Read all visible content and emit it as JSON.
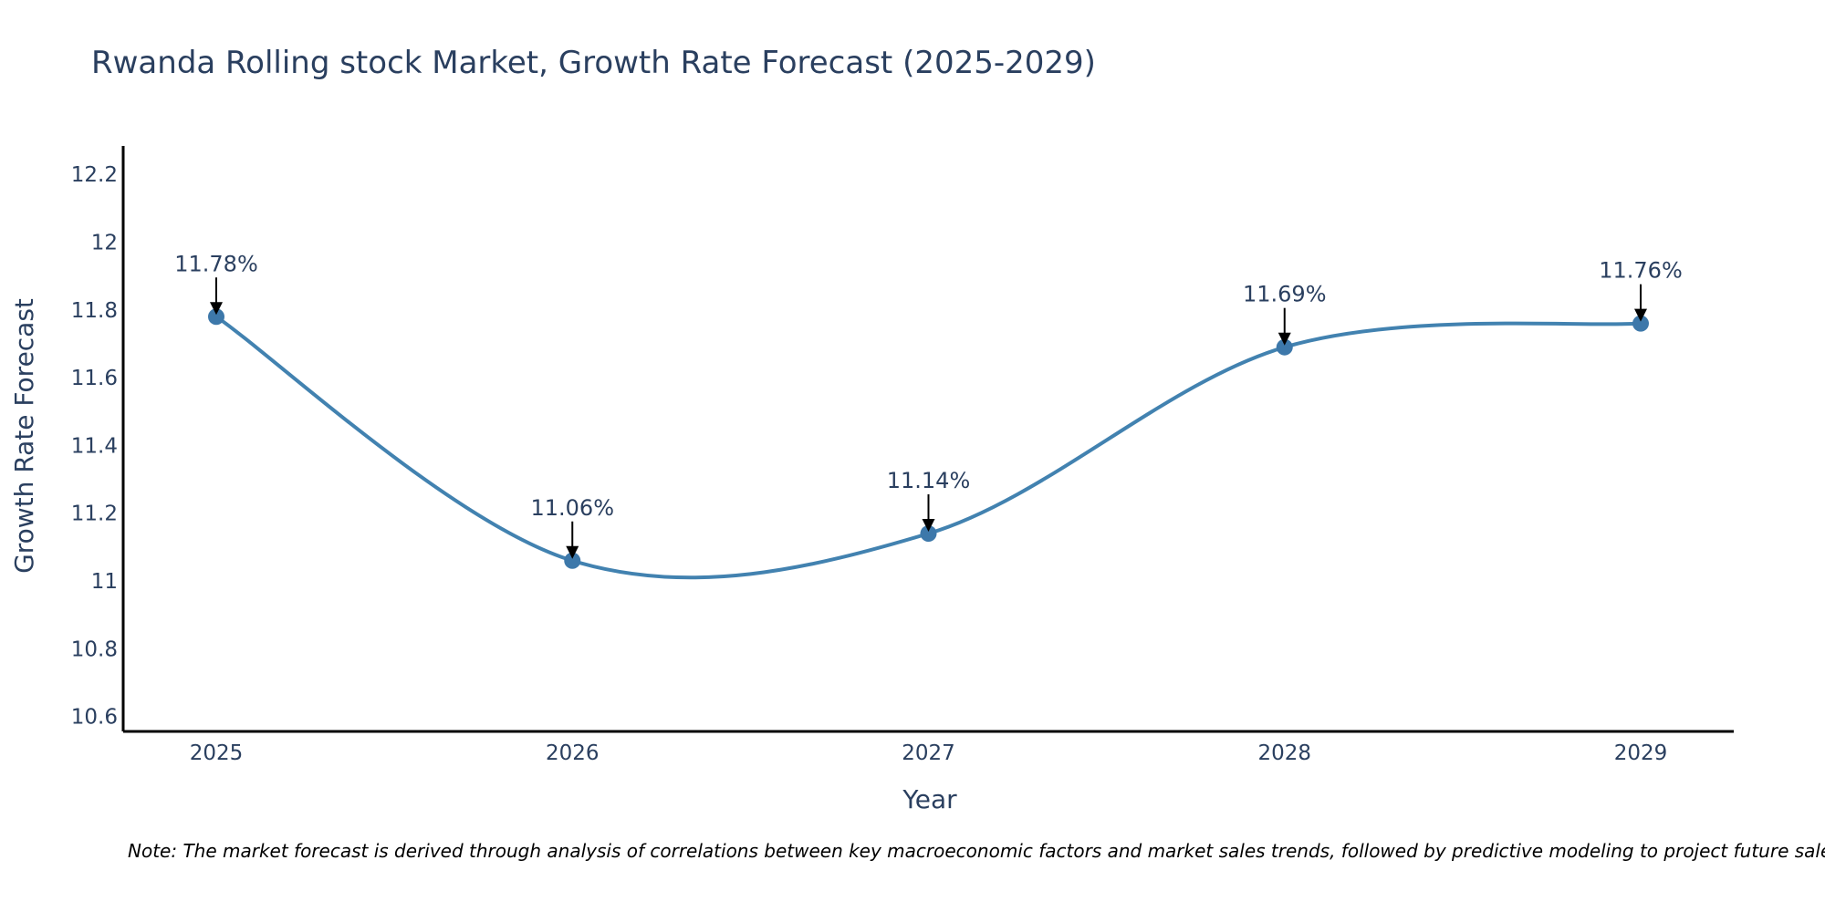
{
  "chart_data": {
    "type": "line",
    "title": "Rwanda Rolling stock Market, Growth Rate Forecast (2025-2029)",
    "xlabel": "Year",
    "ylabel": "Growth Rate Forecast",
    "categories": [
      "2025",
      "2026",
      "2027",
      "2028",
      "2029"
    ],
    "series": [
      {
        "name": "Growth Rate Forecast",
        "values": [
          11.78,
          11.06,
          11.14,
          11.69,
          11.76
        ],
        "labels": [
          "11.78%",
          "11.06%",
          "11.14%",
          "11.69%",
          "11.76%"
        ]
      }
    ],
    "ylim": [
      10.556,
      12.284
    ],
    "yticks": [
      10.6,
      10.8,
      11,
      11.2,
      11.4,
      11.6,
      11.8,
      12,
      12.2
    ],
    "ytick_labels": [
      "10.6",
      "10.8",
      "11",
      "11.2",
      "11.4",
      "11.6",
      "11.8",
      "12",
      "12.2"
    ],
    "line_shape": "spline",
    "grid": false,
    "colors": {
      "line": "#4282b0",
      "marker": "#3d78aa",
      "arrow": "#000000",
      "axis": "#000000",
      "text": "#2a3f5f"
    },
    "note": "Note: The market forecast is derived through analysis of correlations between key macroeconomic factors and market sales trends, followed by predictive modeling to project future sales."
  }
}
